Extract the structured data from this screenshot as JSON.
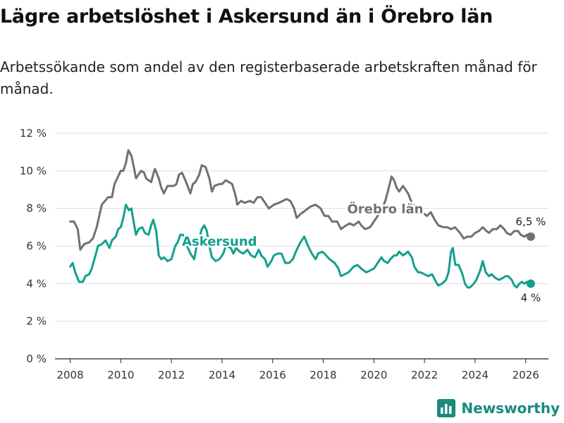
{
  "title": "Lägre arbetslöshet i Askersund än i Örebro län",
  "subtitle": "Arbetssökande som andel av den registerbaserade arbetskraften månad för månad.",
  "brand": {
    "name": "Newsworthy",
    "icon": "newsworthy-logo-icon"
  },
  "colors": {
    "askersund": "#11a08e",
    "orebro": "#707070",
    "grid": "#dddddd",
    "axis": "#222222"
  },
  "chart_data": {
    "type": "line",
    "title": "Lägre arbetslöshet i Askersund än i Örebro län",
    "xlabel": "",
    "ylabel": "",
    "xlim": [
      2007.4,
      2026.9
    ],
    "ylim": [
      0,
      12
    ],
    "x_ticks": [
      2008,
      2010,
      2012,
      2014,
      2016,
      2018,
      2020,
      2022,
      2024,
      2026
    ],
    "x_tick_labels": [
      "2008",
      "2010",
      "2012",
      "2014",
      "2016",
      "2018",
      "2020",
      "2022",
      "2024",
      "2026"
    ],
    "y_ticks": [
      0,
      2,
      4,
      6,
      8,
      10,
      12
    ],
    "y_tick_labels": [
      "0 %",
      "2 %",
      "4 %",
      "6 %",
      "8 %",
      "10 %",
      "12 %"
    ],
    "grid": true,
    "series": [
      {
        "name": "Örebro län",
        "color": "#707070",
        "end_label": "6,5 %",
        "points": [
          [
            2008.0,
            7.3
          ],
          [
            2008.15,
            7.3
          ],
          [
            2008.3,
            6.9
          ],
          [
            2008.4,
            5.8
          ],
          [
            2008.55,
            6.1
          ],
          [
            2008.75,
            6.2
          ],
          [
            2008.9,
            6.4
          ],
          [
            2009.05,
            7.0
          ],
          [
            2009.25,
            8.2
          ],
          [
            2009.5,
            8.6
          ],
          [
            2009.65,
            8.6
          ],
          [
            2009.75,
            9.3
          ],
          [
            2010.0,
            10.0
          ],
          [
            2010.1,
            10.0
          ],
          [
            2010.2,
            10.4
          ],
          [
            2010.3,
            11.1
          ],
          [
            2010.42,
            10.8
          ],
          [
            2010.5,
            10.3
          ],
          [
            2010.6,
            9.6
          ],
          [
            2010.8,
            10.0
          ],
          [
            2010.92,
            9.9
          ],
          [
            2011.0,
            9.6
          ],
          [
            2011.2,
            9.4
          ],
          [
            2011.3,
            9.9
          ],
          [
            2011.35,
            10.1
          ],
          [
            2011.5,
            9.6
          ],
          [
            2011.6,
            9.1
          ],
          [
            2011.7,
            8.8
          ],
          [
            2011.85,
            9.2
          ],
          [
            2012.1,
            9.2
          ],
          [
            2012.2,
            9.3
          ],
          [
            2012.3,
            9.8
          ],
          [
            2012.42,
            9.9
          ],
          [
            2012.55,
            9.5
          ],
          [
            2012.75,
            8.8
          ],
          [
            2012.85,
            9.3
          ],
          [
            2012.95,
            9.4
          ],
          [
            2013.1,
            9.8
          ],
          [
            2013.2,
            10.3
          ],
          [
            2013.35,
            10.2
          ],
          [
            2013.5,
            9.6
          ],
          [
            2013.6,
            8.9
          ],
          [
            2013.7,
            9.2
          ],
          [
            2013.9,
            9.3
          ],
          [
            2014.0,
            9.3
          ],
          [
            2014.15,
            9.5
          ],
          [
            2014.4,
            9.3
          ],
          [
            2014.55,
            8.6
          ],
          [
            2014.6,
            8.2
          ],
          [
            2014.75,
            8.4
          ],
          [
            2014.9,
            8.3
          ],
          [
            2015.1,
            8.4
          ],
          [
            2015.25,
            8.3
          ],
          [
            2015.4,
            8.6
          ],
          [
            2015.55,
            8.6
          ],
          [
            2015.7,
            8.3
          ],
          [
            2015.85,
            8.0
          ],
          [
            2016.05,
            8.2
          ],
          [
            2016.25,
            8.3
          ],
          [
            2016.4,
            8.4
          ],
          [
            2016.55,
            8.5
          ],
          [
            2016.7,
            8.4
          ],
          [
            2016.85,
            8.0
          ],
          [
            2016.95,
            7.5
          ],
          [
            2017.1,
            7.7
          ],
          [
            2017.3,
            7.9
          ],
          [
            2017.5,
            8.1
          ],
          [
            2017.7,
            8.2
          ],
          [
            2017.9,
            8.0
          ],
          [
            2018.05,
            7.6
          ],
          [
            2018.2,
            7.6
          ],
          [
            2018.35,
            7.3
          ],
          [
            2018.55,
            7.3
          ],
          [
            2018.7,
            6.9
          ],
          [
            2018.9,
            7.1
          ],
          [
            2019.05,
            7.2
          ],
          [
            2019.2,
            7.1
          ],
          [
            2019.4,
            7.3
          ],
          [
            2019.5,
            7.1
          ],
          [
            2019.65,
            6.9
          ],
          [
            2019.85,
            7.0
          ],
          [
            2020.0,
            7.3
          ],
          [
            2020.15,
            7.6
          ],
          [
            2020.3,
            7.9
          ],
          [
            2020.45,
            8.4
          ],
          [
            2020.55,
            8.9
          ],
          [
            2020.7,
            9.7
          ],
          [
            2020.8,
            9.5
          ],
          [
            2020.9,
            9.1
          ],
          [
            2021.0,
            8.9
          ],
          [
            2021.15,
            9.2
          ],
          [
            2021.35,
            8.8
          ],
          [
            2021.5,
            8.3
          ],
          [
            2021.7,
            8.0
          ],
          [
            2021.9,
            7.8
          ],
          [
            2022.1,
            7.6
          ],
          [
            2022.25,
            7.8
          ],
          [
            2022.4,
            7.4
          ],
          [
            2022.55,
            7.1
          ],
          [
            2022.75,
            7.0
          ],
          [
            2022.9,
            7.0
          ],
          [
            2023.05,
            6.9
          ],
          [
            2023.2,
            7.0
          ],
          [
            2023.4,
            6.7
          ],
          [
            2023.55,
            6.4
          ],
          [
            2023.7,
            6.5
          ],
          [
            2023.85,
            6.5
          ],
          [
            2024.0,
            6.7
          ],
          [
            2024.15,
            6.8
          ],
          [
            2024.3,
            7.0
          ],
          [
            2024.45,
            6.8
          ],
          [
            2024.55,
            6.7
          ],
          [
            2024.7,
            6.9
          ],
          [
            2024.85,
            6.9
          ],
          [
            2025.0,
            7.1
          ],
          [
            2025.15,
            6.9
          ],
          [
            2025.25,
            6.7
          ],
          [
            2025.4,
            6.6
          ],
          [
            2025.55,
            6.8
          ],
          [
            2025.7,
            6.8
          ],
          [
            2025.8,
            6.6
          ],
          [
            2025.95,
            6.5
          ],
          [
            2026.05,
            6.6
          ],
          [
            2026.2,
            6.5
          ]
        ]
      },
      {
        "name": "Askersund",
        "color": "#11a08e",
        "end_label": "4 %",
        "points": [
          [
            2008.0,
            4.9
          ],
          [
            2008.1,
            5.1
          ],
          [
            2008.2,
            4.6
          ],
          [
            2008.35,
            4.1
          ],
          [
            2008.5,
            4.1
          ],
          [
            2008.6,
            4.4
          ],
          [
            2008.75,
            4.5
          ],
          [
            2008.85,
            4.8
          ],
          [
            2009.0,
            5.5
          ],
          [
            2009.1,
            6.0
          ],
          [
            2009.25,
            6.1
          ],
          [
            2009.4,
            6.3
          ],
          [
            2009.55,
            5.9
          ],
          [
            2009.65,
            6.3
          ],
          [
            2009.8,
            6.5
          ],
          [
            2009.9,
            6.9
          ],
          [
            2010.0,
            7.0
          ],
          [
            2010.1,
            7.5
          ],
          [
            2010.2,
            8.2
          ],
          [
            2010.32,
            7.9
          ],
          [
            2010.42,
            8.0
          ],
          [
            2010.52,
            7.2
          ],
          [
            2010.6,
            6.6
          ],
          [
            2010.7,
            6.9
          ],
          [
            2010.85,
            7.0
          ],
          [
            2010.95,
            6.7
          ],
          [
            2011.1,
            6.6
          ],
          [
            2011.2,
            7.1
          ],
          [
            2011.28,
            7.4
          ],
          [
            2011.4,
            6.8
          ],
          [
            2011.5,
            5.5
          ],
          [
            2011.6,
            5.3
          ],
          [
            2011.7,
            5.4
          ],
          [
            2011.85,
            5.2
          ],
          [
            2012.0,
            5.3
          ],
          [
            2012.15,
            6.0
          ],
          [
            2012.25,
            6.2
          ],
          [
            2012.35,
            6.6
          ],
          [
            2012.45,
            6.6
          ],
          [
            2012.55,
            6.4
          ],
          [
            2012.65,
            5.9
          ],
          [
            2012.75,
            5.6
          ],
          [
            2012.9,
            5.3
          ],
          [
            2013.0,
            6.0
          ],
          [
            2013.1,
            6.4
          ],
          [
            2013.2,
            6.9
          ],
          [
            2013.3,
            7.1
          ],
          [
            2013.4,
            6.8
          ],
          [
            2013.5,
            6.0
          ],
          [
            2013.6,
            5.4
          ],
          [
            2013.75,
            5.2
          ],
          [
            2013.9,
            5.3
          ],
          [
            2014.05,
            5.6
          ],
          [
            2014.15,
            6.0
          ],
          [
            2014.35,
            5.9
          ],
          [
            2014.45,
            5.6
          ],
          [
            2014.55,
            5.9
          ],
          [
            2014.7,
            5.7
          ],
          [
            2014.85,
            5.6
          ],
          [
            2015.0,
            5.8
          ],
          [
            2015.15,
            5.5
          ],
          [
            2015.3,
            5.4
          ],
          [
            2015.45,
            5.8
          ],
          [
            2015.55,
            5.5
          ],
          [
            2015.7,
            5.3
          ],
          [
            2015.8,
            4.9
          ],
          [
            2015.95,
            5.2
          ],
          [
            2016.05,
            5.5
          ],
          [
            2016.2,
            5.6
          ],
          [
            2016.35,
            5.6
          ],
          [
            2016.5,
            5.1
          ],
          [
            2016.65,
            5.1
          ],
          [
            2016.8,
            5.3
          ],
          [
            2016.95,
            5.8
          ],
          [
            2017.1,
            6.2
          ],
          [
            2017.25,
            6.5
          ],
          [
            2017.4,
            6.0
          ],
          [
            2017.55,
            5.6
          ],
          [
            2017.7,
            5.3
          ],
          [
            2017.8,
            5.6
          ],
          [
            2017.95,
            5.7
          ],
          [
            2018.05,
            5.6
          ],
          [
            2018.25,
            5.3
          ],
          [
            2018.45,
            5.1
          ],
          [
            2018.6,
            4.8
          ],
          [
            2018.7,
            4.4
          ],
          [
            2018.85,
            4.5
          ],
          [
            2019.0,
            4.6
          ],
          [
            2019.2,
            4.9
          ],
          [
            2019.35,
            5.0
          ],
          [
            2019.5,
            4.8
          ],
          [
            2019.7,
            4.6
          ],
          [
            2019.85,
            4.7
          ],
          [
            2020.0,
            4.8
          ],
          [
            2020.15,
            5.1
          ],
          [
            2020.3,
            5.4
          ],
          [
            2020.4,
            5.2
          ],
          [
            2020.55,
            5.1
          ],
          [
            2020.65,
            5.3
          ],
          [
            2020.8,
            5.5
          ],
          [
            2020.9,
            5.5
          ],
          [
            2021.0,
            5.7
          ],
          [
            2021.15,
            5.5
          ],
          [
            2021.35,
            5.7
          ],
          [
            2021.5,
            5.4
          ],
          [
            2021.6,
            4.9
          ],
          [
            2021.75,
            4.6
          ],
          [
            2021.85,
            4.6
          ],
          [
            2022.0,
            4.5
          ],
          [
            2022.15,
            4.4
          ],
          [
            2022.3,
            4.5
          ],
          [
            2022.45,
            4.1
          ],
          [
            2022.55,
            3.9
          ],
          [
            2022.7,
            4.0
          ],
          [
            2022.85,
            4.2
          ],
          [
            2022.95,
            4.6
          ],
          [
            2023.05,
            5.7
          ],
          [
            2023.12,
            5.9
          ],
          [
            2023.22,
            5.0
          ],
          [
            2023.35,
            5.0
          ],
          [
            2023.5,
            4.5
          ],
          [
            2023.6,
            4.0
          ],
          [
            2023.7,
            3.8
          ],
          [
            2023.8,
            3.8
          ],
          [
            2023.95,
            4.0
          ],
          [
            2024.05,
            4.2
          ],
          [
            2024.2,
            4.7
          ],
          [
            2024.3,
            5.2
          ],
          [
            2024.42,
            4.6
          ],
          [
            2024.55,
            4.4
          ],
          [
            2024.65,
            4.5
          ],
          [
            2024.8,
            4.3
          ],
          [
            2024.95,
            4.2
          ],
          [
            2025.1,
            4.3
          ],
          [
            2025.2,
            4.4
          ],
          [
            2025.3,
            4.4
          ],
          [
            2025.45,
            4.2
          ],
          [
            2025.55,
            3.9
          ],
          [
            2025.65,
            3.8
          ],
          [
            2025.75,
            4.0
          ],
          [
            2025.85,
            4.1
          ],
          [
            2025.95,
            4.0
          ],
          [
            2026.05,
            4.1
          ],
          [
            2026.2,
            4.0
          ]
        ]
      }
    ]
  }
}
